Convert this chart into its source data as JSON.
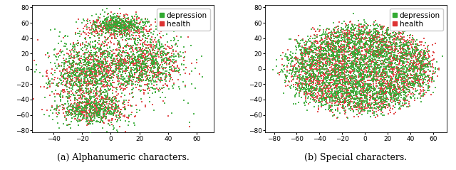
{
  "subplot_a": {
    "caption": "(a) Alphanumeric characters.",
    "xlim": [
      -55,
      72
    ],
    "ylim": [
      -83,
      83
    ],
    "xticks": [
      -40,
      -20,
      0,
      20,
      40,
      60
    ],
    "yticks": [
      -80,
      -60,
      -40,
      -20,
      0,
      20,
      40,
      60,
      80
    ],
    "n_depression": 2200,
    "n_health": 1800,
    "seed": 42
  },
  "subplot_b": {
    "caption": "(b) Special characters.",
    "xlim": [
      -88,
      72
    ],
    "ylim": [
      -83,
      83
    ],
    "xticks": [
      -80,
      -60,
      -40,
      -20,
      0,
      20,
      40,
      60
    ],
    "yticks": [
      -80,
      -60,
      -40,
      -20,
      0,
      20,
      40,
      60,
      80
    ],
    "n_depression": 3000,
    "n_health": 2500,
    "seed": 77
  },
  "color_depression": "#33aa33",
  "color_health": "#dd3333",
  "marker_size": 2.5,
  "alpha": 0.85,
  "legend_fontsize": 7.5,
  "tick_fontsize": 6.5,
  "caption_fontsize": 9
}
